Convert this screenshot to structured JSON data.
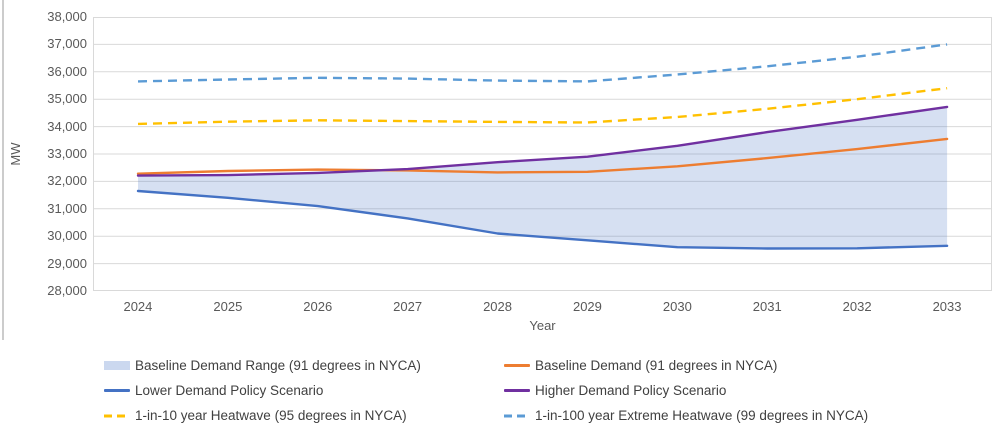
{
  "colors": {
    "grid": "#d9d9d9",
    "plot_border": "#d9d9d9",
    "axis_text": "#595959",
    "legend_text": "#404040",
    "background": "#ffffff"
  },
  "chart_data": {
    "type": "line",
    "title": "",
    "x": [
      "2024",
      "2025",
      "2026",
      "2027",
      "2028",
      "2029",
      "2030",
      "2031",
      "2032",
      "2033"
    ],
    "xlabel": "Year",
    "ylabel": "MW",
    "ylim": [
      28000,
      38000
    ],
    "ytick_step": 1000,
    "ytick_labels": [
      "38,000",
      "37,000",
      "36,000",
      "35,000",
      "34,000",
      "33,000",
      "32,000",
      "31,000",
      "30,000",
      "29,000",
      "28,000"
    ],
    "grid": true,
    "legend_position": "bottom, two columns",
    "series": [
      {
        "name": "Baseline Demand Range (91 degrees in NYCA)",
        "type": "area",
        "color": "#4472C4",
        "fill_opacity": 0.22,
        "swatch": "fill",
        "swatch_color": "#CBD8EF",
        "upper": [
          32210,
          32230,
          32310,
          32450,
          32700,
          32900,
          33300,
          33800,
          34250,
          34720
        ],
        "lower": [
          31650,
          31400,
          31100,
          30650,
          30100,
          29850,
          29600,
          29550,
          29560,
          29650
        ]
      },
      {
        "name": "Baseline Demand (91 degrees in NYCA)",
        "type": "line",
        "dash": "solid",
        "color": "#ED7D31",
        "swatch": "solid",
        "values": [
          32280,
          32380,
          32430,
          32400,
          32330,
          32350,
          32550,
          32850,
          33180,
          33550
        ]
      },
      {
        "name": "Lower Demand Policy Scenario",
        "type": "line",
        "dash": "solid",
        "color": "#4472C4",
        "swatch": "solid",
        "values": [
          31650,
          31400,
          31100,
          30650,
          30100,
          29850,
          29600,
          29550,
          29560,
          29650
        ]
      },
      {
        "name": "Higher Demand Policy Scenario",
        "type": "line",
        "dash": "solid",
        "color": "#7030A0",
        "swatch": "solid",
        "values": [
          32210,
          32230,
          32310,
          32450,
          32700,
          32900,
          33300,
          33800,
          34250,
          34720
        ]
      },
      {
        "name": "1-in-10 year Heatwave (95 degrees in NYCA)",
        "type": "line",
        "dash": "dashed",
        "color": "#FFC000",
        "swatch": "dashed",
        "values": [
          34100,
          34180,
          34230,
          34200,
          34170,
          34150,
          34350,
          34650,
          35000,
          35400
        ]
      },
      {
        "name": "1-in-100 year Extreme Heatwave (99 degrees in NYCA)",
        "type": "line",
        "dash": "dashed",
        "color": "#5B9BD5",
        "swatch": "dashed",
        "values": [
          35650,
          35720,
          35780,
          35750,
          35680,
          35650,
          35900,
          36200,
          36550,
          37000
        ]
      }
    ]
  }
}
